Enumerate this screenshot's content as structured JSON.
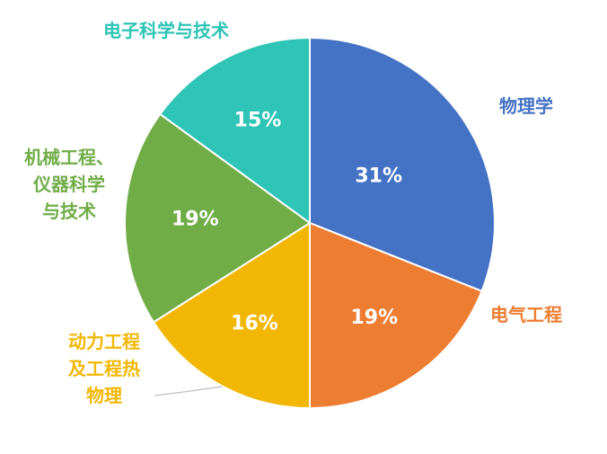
{
  "chart_data": {
    "type": "pie",
    "start_angle_deg": 0,
    "direction": "clockwise",
    "slices": [
      {
        "label": [
          "物理学"
        ],
        "value": 31,
        "value_label": "31%",
        "color": "#4472C4"
      },
      {
        "label": [
          "电气工程"
        ],
        "value": 19,
        "value_label": "19%",
        "color": "#ED7D31"
      },
      {
        "label": [
          "动力工程",
          "及工程热",
          "物理"
        ],
        "value": 16,
        "value_label": "16%",
        "color": "#F2B705"
      },
      {
        "label": [
          "机械工程、",
          "仪器科学",
          "与技术"
        ],
        "value": 19,
        "value_label": "19%",
        "color": "#70AD47"
      },
      {
        "label": [
          "电子科学与技术"
        ],
        "value": 15,
        "value_label": "15%",
        "color": "#2EC4B6"
      }
    ]
  }
}
